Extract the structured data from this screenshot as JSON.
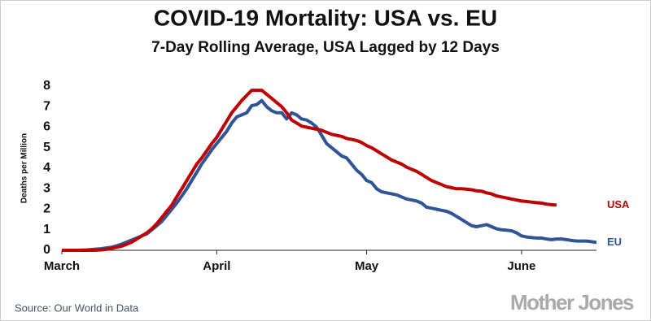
{
  "chart_data": {
    "type": "line",
    "title": "COVID-19 Mortality: USA vs. EU",
    "subtitle": "7-Day Rolling Average, USA Lagged by 12 Days",
    "y_label": "Deaths per Million",
    "source": "Source: Our World in Data",
    "watermark": "Mother Jones",
    "categories": [
      "March",
      null,
      null,
      null,
      null,
      null,
      null,
      null,
      null,
      null,
      null,
      null,
      null,
      null,
      null,
      null,
      null,
      null,
      null,
      null,
      null,
      null,
      null,
      null,
      null,
      null,
      null,
      null,
      null,
      null,
      null,
      "April",
      null,
      null,
      null,
      null,
      null,
      null,
      null,
      null,
      null,
      null,
      null,
      null,
      null,
      null,
      null,
      null,
      null,
      null,
      null,
      null,
      null,
      null,
      null,
      null,
      null,
      null,
      null,
      null,
      null,
      "May",
      null,
      null,
      null,
      null,
      null,
      null,
      null,
      null,
      null,
      null,
      null,
      null,
      null,
      null,
      null,
      null,
      null,
      null,
      null,
      null,
      null,
      null,
      null,
      null,
      null,
      null,
      null,
      null,
      null,
      null,
      "June",
      null,
      null,
      null,
      null,
      null,
      null,
      null,
      null,
      null,
      null,
      null,
      null,
      null,
      null,
      null
    ],
    "ylim": [
      0,
      8
    ],
    "yticks": [
      0,
      1,
      2,
      3,
      4,
      5,
      6,
      7,
      8
    ],
    "grid": false,
    "series": [
      {
        "name": "EU",
        "color": "#2f5597",
        "values": [
          0,
          0,
          0,
          0,
          0.01,
          0.02,
          0.04,
          0.06,
          0.08,
          0.12,
          0.15,
          0.22,
          0.3,
          0.4,
          0.5,
          0.6,
          0.7,
          0.8,
          1.0,
          1.2,
          1.4,
          1.7,
          2.0,
          2.3,
          2.65,
          3.0,
          3.4,
          3.8,
          4.2,
          4.55,
          4.9,
          5.2,
          5.5,
          5.8,
          6.2,
          6.5,
          6.6,
          6.7,
          7.05,
          7.1,
          7.3,
          7.0,
          6.8,
          6.7,
          6.7,
          6.4,
          6.7,
          6.6,
          6.4,
          6.35,
          6.2,
          6.0,
          5.6,
          5.2,
          5.0,
          4.8,
          4.6,
          4.5,
          4.2,
          3.9,
          3.7,
          3.4,
          3.3,
          3.0,
          2.85,
          2.8,
          2.75,
          2.7,
          2.6,
          2.5,
          2.45,
          2.4,
          2.3,
          2.1,
          2.05,
          2.0,
          1.95,
          1.9,
          1.8,
          1.65,
          1.5,
          1.35,
          1.2,
          1.15,
          1.2,
          1.25,
          1.15,
          1.05,
          1.0,
          0.98,
          0.95,
          0.85,
          0.7,
          0.65,
          0.62,
          0.6,
          0.6,
          0.55,
          0.52,
          0.55,
          0.55,
          0.52,
          0.48,
          0.45,
          0.45,
          0.45,
          0.42,
          0.38
        ]
      },
      {
        "name": "USA",
        "color": "#c00000",
        "values": [
          0,
          0,
          0,
          0,
          0,
          0,
          0,
          0.01,
          0.02,
          0.05,
          0.1,
          0.15,
          0.2,
          0.3,
          0.4,
          0.55,
          0.7,
          0.85,
          1.05,
          1.3,
          1.6,
          1.9,
          2.2,
          2.6,
          3.0,
          3.4,
          3.8,
          4.2,
          4.5,
          4.85,
          5.2,
          5.5,
          5.9,
          6.3,
          6.7,
          7.0,
          7.3,
          7.55,
          7.8,
          7.8,
          7.8,
          7.6,
          7.4,
          7.2,
          7.0,
          6.7,
          6.35,
          6.2,
          6.05,
          6.0,
          5.95,
          5.9,
          5.85,
          5.75,
          5.65,
          5.6,
          5.55,
          5.45,
          5.4,
          5.35,
          5.25,
          5.1,
          5.0,
          4.85,
          4.7,
          4.55,
          4.4,
          4.3,
          4.2,
          4.05,
          3.95,
          3.85,
          3.7,
          3.55,
          3.4,
          3.3,
          3.2,
          3.1,
          3.05,
          3.0,
          3.0,
          2.98,
          2.95,
          2.9,
          2.88,
          2.8,
          2.75,
          2.65,
          2.6,
          2.55,
          2.5,
          2.45,
          2.4,
          2.38,
          2.35,
          2.32,
          2.3,
          2.25,
          2.22,
          2.2,
          null,
          null,
          null,
          null,
          null,
          null,
          null,
          null
        ]
      }
    ]
  }
}
